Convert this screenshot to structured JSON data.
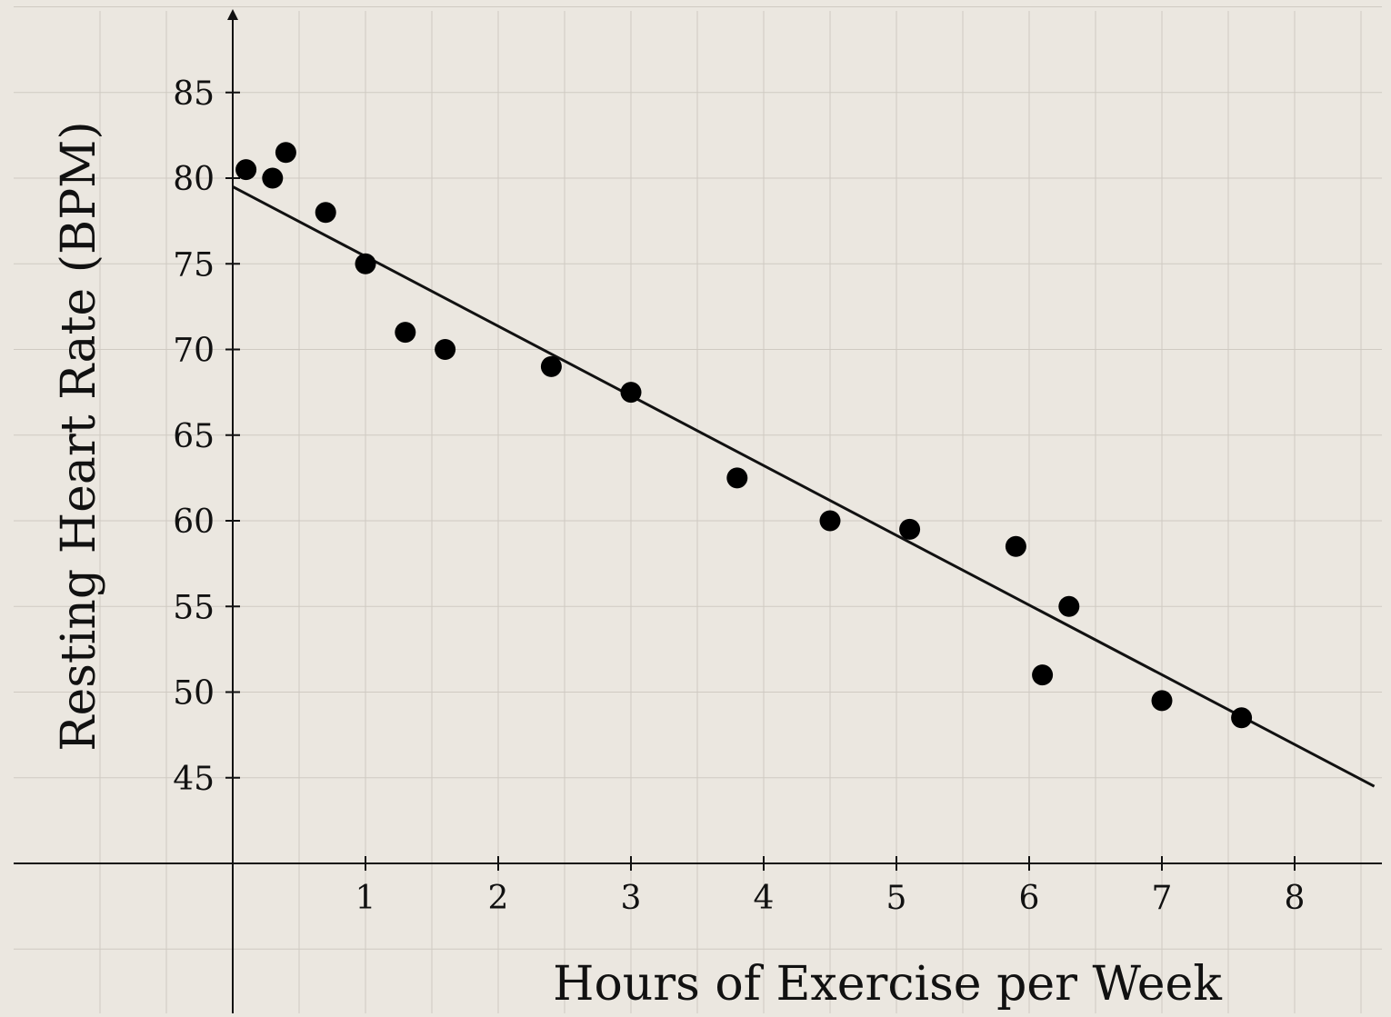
{
  "chart_data": {
    "type": "scatter",
    "title": "",
    "xlabel": "Hours of Exercise per Week",
    "ylabel": "Resting Heart Rate (BPM)",
    "xlim": [
      -1.65,
      8.6
    ],
    "ylim": [
      40,
      90
    ],
    "x_ticks": [
      1,
      2,
      3,
      4,
      5,
      6,
      7,
      8
    ],
    "x_tick_labels": [
      "1",
      "2",
      "3",
      "4",
      "5",
      "6",
      "7",
      "8"
    ],
    "y_ticks": [
      45,
      50,
      55,
      60,
      65,
      70,
      75,
      80,
      85
    ],
    "y_tick_labels": [
      "45",
      "50",
      "55",
      "60",
      "65",
      "70",
      "75",
      "80",
      "85"
    ],
    "grid": true,
    "series": [
      {
        "points": [
          [
            0.1,
            80.5
          ],
          [
            0.3,
            80
          ],
          [
            0.4,
            81.5
          ],
          [
            0.7,
            78
          ],
          [
            1.0,
            75
          ],
          [
            1.3,
            71
          ],
          [
            1.6,
            70
          ],
          [
            2.4,
            69
          ],
          [
            3.0,
            67.5
          ],
          [
            3.8,
            62.5
          ],
          [
            4.5,
            60
          ],
          [
            5.1,
            59.5
          ],
          [
            5.9,
            58.5
          ],
          [
            6.1,
            51
          ],
          [
            6.3,
            55
          ],
          [
            7.0,
            49.5
          ],
          [
            7.6,
            48.5
          ]
        ]
      }
    ],
    "trend_line": {
      "x": [
        0,
        8.6
      ],
      "y": [
        79.5,
        44.5
      ]
    },
    "colors": {
      "background": "#ebe7e0",
      "grid": "#cfcac2",
      "axis": "#111111",
      "points": "#000000"
    }
  }
}
